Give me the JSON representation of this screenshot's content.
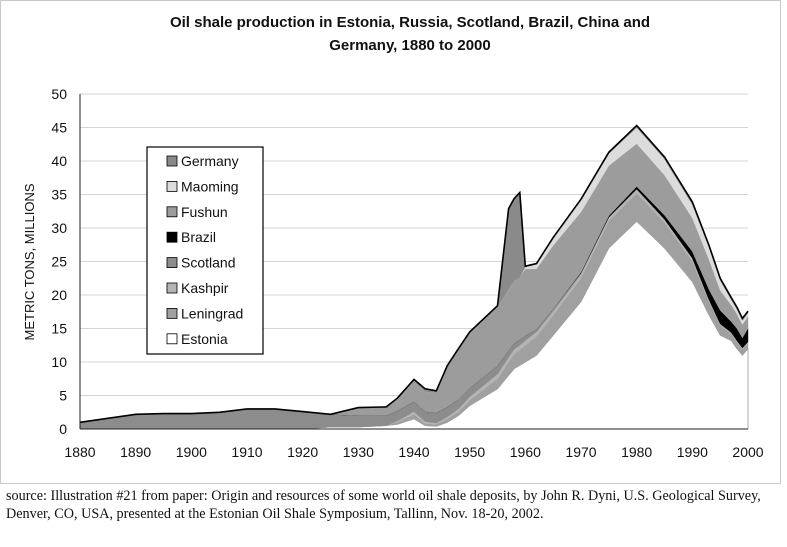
{
  "chart_data": {
    "type": "area",
    "title": [
      "Oil shale production in Estonia, Russia, Scotland, Brazil, China and",
      "Germany, 1880 to 2000"
    ],
    "ylabel": "METRIC TONS, MILLIONS",
    "xlabel": "",
    "xlim": [
      1880,
      2000
    ],
    "ylim": [
      0,
      50
    ],
    "xticks": [
      "1880",
      "1890",
      "1900",
      "1910",
      "1920",
      "1930",
      "1940",
      "1950",
      "1960",
      "1970",
      "1980",
      "1990",
      "2000"
    ],
    "yticks": [
      "0",
      "5",
      "10",
      "15",
      "20",
      "25",
      "30",
      "35",
      "40",
      "45",
      "50"
    ],
    "grid": "horizontal",
    "legend_position": "left",
    "legend": [
      "Germany",
      "Maoming",
      "Fushun",
      "Brazil",
      "Scotland",
      "Kashpir",
      "Leningrad",
      "Estonia"
    ],
    "colors": {
      "Estonia": "#ffffff",
      "Leningrad": "#a0a0a0",
      "Kashpir": "#b4b4b4",
      "Scotland": "#8c8c8c",
      "Brazil": "#000000",
      "Fushun": "#9c9c9c",
      "Maoming": "#dcdcdc",
      "Germany": "#8a8a8a"
    },
    "x": [
      1880,
      1885,
      1890,
      1895,
      1900,
      1905,
      1910,
      1915,
      1920,
      1925,
      1930,
      1935,
      1937,
      1940,
      1942,
      1944,
      1946,
      1948,
      1950,
      1955,
      1957,
      1958,
      1959,
      1960,
      1962,
      1965,
      1970,
      1975,
      1980,
      1985,
      1990,
      1993,
      1995,
      1997,
      1998,
      1999,
      2000
    ],
    "series": [
      {
        "name": "Estonia",
        "values": [
          0,
          0,
          0,
          0,
          0,
          0,
          0,
          0,
          0,
          0.3,
          0.3,
          0.5,
          0.7,
          1.5,
          0.5,
          0.4,
          1.0,
          2.0,
          3.5,
          6.0,
          8.0,
          9.0,
          9.5,
          10.0,
          11.0,
          14.0,
          19.0,
          27.0,
          31.0,
          27.0,
          22.0,
          17.0,
          14.0,
          13.2,
          12.0,
          11.0,
          12.0
        ]
      },
      {
        "name": "Leningrad",
        "values": [
          0,
          0,
          0,
          0,
          0,
          0,
          0,
          0,
          0,
          0,
          0,
          0,
          0.3,
          0.7,
          0.3,
          0.3,
          0.5,
          0.6,
          0.8,
          1.5,
          2.0,
          2.2,
          2.3,
          2.5,
          2.8,
          3.0,
          3.5,
          4.0,
          4.2,
          3.8,
          3.0,
          2.0,
          1.5,
          1.0,
          1.0,
          0.9,
          0.8
        ]
      },
      {
        "name": "Kashpir",
        "values": [
          0,
          0,
          0,
          0,
          0,
          0,
          0,
          0,
          0,
          0,
          0,
          0,
          0.2,
          0.4,
          0.3,
          0.2,
          0.3,
          0.4,
          0.5,
          0.7,
          0.7,
          0.7,
          0.7,
          0.7,
          0.7,
          0.6,
          0.6,
          0.6,
          0.6,
          0.5,
          0.5,
          0.3,
          0.2,
          0.2,
          0.2,
          0.2,
          0.2
        ]
      },
      {
        "name": "Scotland",
        "values": [
          1.0,
          1.6,
          2.2,
          2.3,
          2.3,
          2.5,
          3.0,
          3.0,
          2.6,
          1.9,
          1.7,
          1.5,
          1.5,
          1.5,
          1.5,
          1.5,
          1.5,
          1.4,
          1.3,
          1.2,
          1.0,
          0.9,
          0.8,
          0.7,
          0.4,
          0.3,
          0.2,
          0,
          0,
          0,
          0,
          0,
          0,
          0,
          0,
          0,
          0
        ]
      },
      {
        "name": "Brazil",
        "values": [
          0,
          0,
          0,
          0,
          0,
          0,
          0,
          0,
          0,
          0,
          0,
          0,
          0,
          0,
          0,
          0,
          0,
          0,
          0,
          0,
          0,
          0,
          0,
          0,
          0,
          0,
          0.1,
          0.2,
          0.4,
          0.6,
          1.0,
          1.5,
          2.0,
          1.6,
          1.8,
          1.5,
          2.0
        ]
      },
      {
        "name": "Fushun",
        "values": [
          0,
          0,
          0,
          0,
          0,
          0,
          0,
          0,
          0,
          0,
          1.2,
          1.3,
          1.7,
          3.0,
          3.0,
          3.0,
          6.0,
          7.5,
          8.3,
          8.8,
          9.2,
          9.3,
          9.3,
          10.0,
          9.0,
          9.5,
          9.0,
          7.5,
          6.4,
          6.0,
          5.0,
          4.5,
          3.0,
          2.5,
          2.2,
          2.0,
          1.8
        ]
      },
      {
        "name": "Maoming",
        "values": [
          0,
          0,
          0,
          0,
          0,
          0,
          0,
          0,
          0,
          0,
          0,
          0,
          0,
          0,
          0,
          0,
          0,
          0,
          0,
          0,
          0,
          0,
          0,
          0.3,
          0.7,
          1.0,
          1.8,
          1.8,
          2.4,
          2.4,
          2.0,
          1.8,
          1.5,
          0.8,
          0.7,
          0.6,
          0.5
        ]
      },
      {
        "name": "Germany",
        "values": [
          0,
          0,
          0,
          0,
          0,
          0,
          0,
          0,
          0,
          0,
          0,
          0,
          0.2,
          0.3,
          0.4,
          0.3,
          0.2,
          0.1,
          0.1,
          0.2,
          12.0,
          12.3,
          12.7,
          0.1,
          0.1,
          0.2,
          0.1,
          0.2,
          0.3,
          0.3,
          0.4,
          0.3,
          0.3,
          0.3,
          0.3,
          0.3,
          0.3
        ]
      }
    ]
  },
  "source_note": "source: Illustration #21 from paper: Origin and resources of some world oil shale deposits, by John R. Dyni, U.S. Geological Survey, Denver, CO, USA, presented at the Estonian Oil Shale Symposium, Tallinn, Nov. 18-20, 2002."
}
